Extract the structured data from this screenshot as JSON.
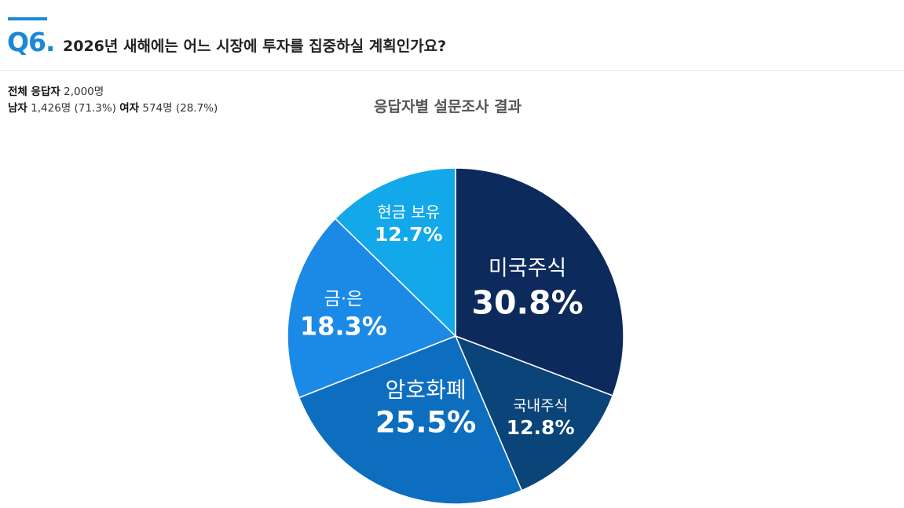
{
  "question": {
    "number": "Q6.",
    "text": "2026년 새해에는 어느 시장에 투자를 집중하실 계획인가요?"
  },
  "respondents": {
    "total_label": "전체 응답자",
    "total_value": "2,000명",
    "male_label": "남자",
    "male_value": "1,426명 (71.3%)",
    "female_label": "여자",
    "female_value": "574명 (28.7%)"
  },
  "chart_data": {
    "type": "pie",
    "title": "응답자별 설문조사 결과",
    "slices": [
      {
        "label": "미국주식",
        "value": 30.8,
        "display": "30.8%",
        "color": "#0d2a5c"
      },
      {
        "label": "국내주식",
        "value": 12.8,
        "display": "12.8%",
        "color": "#0a4479"
      },
      {
        "label": "암호화폐",
        "value": 25.5,
        "display": "25.5%",
        "color": "#0d6ec0"
      },
      {
        "label": "금·은",
        "value": 18.3,
        "display": "18.3%",
        "color": "#1b8ae6"
      },
      {
        "label": "현금 보유",
        "value": 12.7,
        "display": "12.7%",
        "color": "#12a8ea"
      }
    ]
  }
}
